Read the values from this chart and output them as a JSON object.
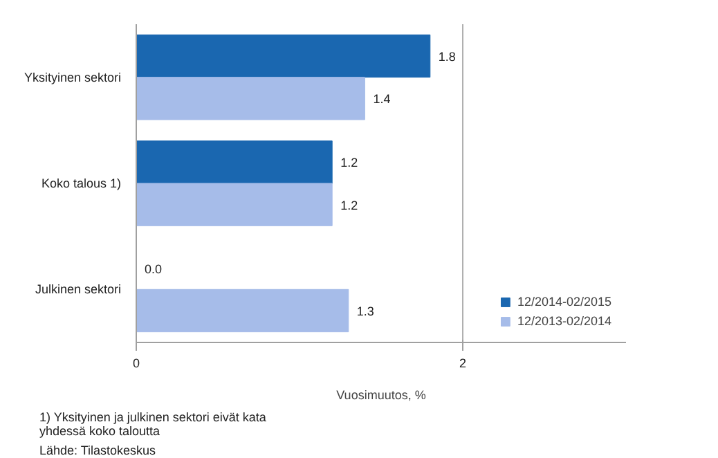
{
  "chart_data": {
    "type": "bar",
    "orientation": "horizontal",
    "xlabel": "Vuosimuutos, %",
    "categories": [
      "Yksityinen sektori",
      "Koko talous 1)",
      "Julkinen sektori"
    ],
    "series": [
      {
        "name": "12/2014-02/2015",
        "color": "#1a67b0",
        "values": [
          1.8,
          1.2,
          0.0
        ],
        "value_labels": [
          "1.8",
          "1.2",
          "0.0"
        ]
      },
      {
        "name": "12/2013-02/2014",
        "color": "#a6bce9",
        "values": [
          1.4,
          1.2,
          1.3
        ],
        "value_labels": [
          "1.4",
          "1.2",
          "1.3"
        ]
      }
    ],
    "xlim": [
      0,
      3
    ],
    "xticks": [
      0,
      2
    ],
    "grid": "x",
    "legend": "bottom right",
    "annotations": [
      "1) Yksityinen ja julkinen sektori eivät kata yhdessä koko taloutta",
      "Lähde: Tilastokeskus"
    ]
  }
}
